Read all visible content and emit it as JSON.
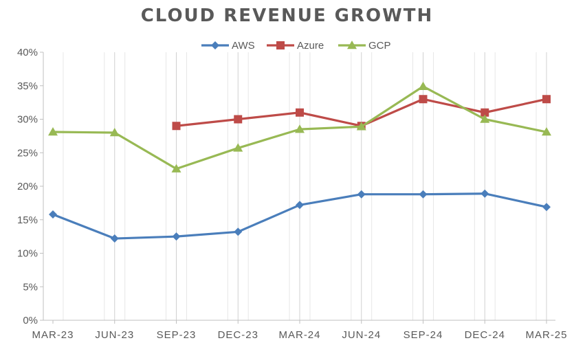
{
  "chart_data": {
    "type": "line",
    "title": "CLOUD REVENUE GROWTH",
    "xlabel": "",
    "ylabel": "",
    "ylim": [
      0,
      40
    ],
    "y_ticks": [
      "0%",
      "5%",
      "10%",
      "15%",
      "20%",
      "25%",
      "30%",
      "35%",
      "40%"
    ],
    "x_tick_labels": [
      "MAR-23",
      "JUN-23",
      "SEP-23",
      "DEC-23",
      "MAR-24",
      "JUN-24",
      "SEP-24",
      "DEC-24",
      "MAR-25"
    ],
    "categories": [
      "MAR-23",
      "JUN-23",
      "SEP-23",
      "DEC-23",
      "MAR-24",
      "JUN-24",
      "SEP-24",
      "DEC-24",
      "MAR-25"
    ],
    "grid": "vertical",
    "legend_position": "top",
    "series": [
      {
        "name": "AWS",
        "color": "#4a7ebb",
        "marker": "diamond",
        "values": [
          15.8,
          12.2,
          12.5,
          13.2,
          17.2,
          18.8,
          18.8,
          18.9,
          16.9
        ]
      },
      {
        "name": "Azure",
        "color": "#be4b48",
        "marker": "square",
        "values": [
          null,
          null,
          29,
          30,
          31,
          29,
          33,
          31,
          33
        ]
      },
      {
        "name": "GCP",
        "color": "#98b954",
        "marker": "triangle",
        "values": [
          28.1,
          28,
          22.6,
          25.7,
          28.5,
          28.9,
          34.9,
          30,
          28.1
        ]
      }
    ]
  }
}
